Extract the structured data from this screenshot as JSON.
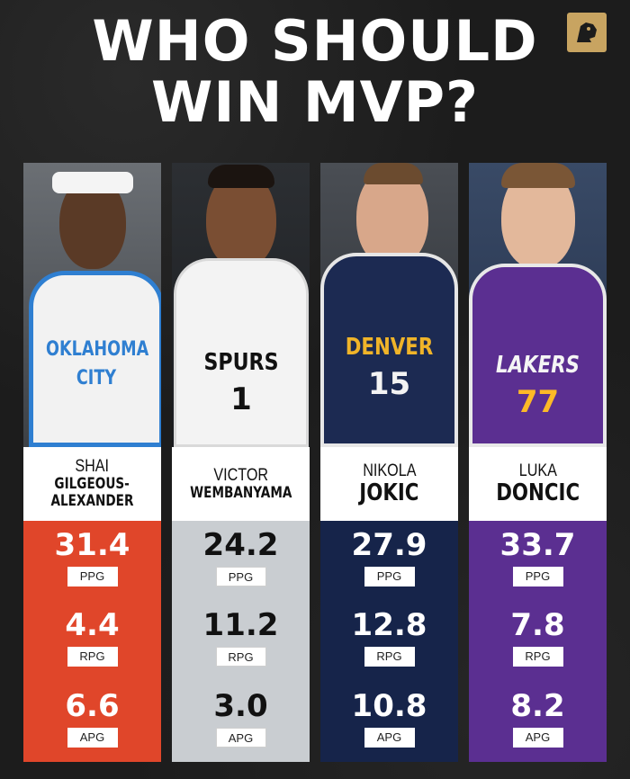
{
  "title_lines": [
    "WHO SHOULD",
    "WIN MVP?"
  ],
  "colors": {
    "background": "#1c1c1c",
    "logo_gold": "#c8a461"
  },
  "players": [
    {
      "first_name": "SHAI",
      "last_name": "GILGEOUS-ALEXANDER",
      "last_name_lines": [
        "GILGEOUS-",
        "ALEXANDER"
      ],
      "jersey_text": [
        "OKLAHOMA",
        "CITY"
      ],
      "stat_color": "#e0462a",
      "stats": [
        {
          "value": "31.4",
          "label": "PPG"
        },
        {
          "value": "4.4",
          "label": "RPG"
        },
        {
          "value": "6.6",
          "label": "APG"
        }
      ]
    },
    {
      "first_name": "VICTOR",
      "last_name": "WEMBANYAMA",
      "jersey_text": [
        "SPURS",
        "1"
      ],
      "stat_color": "#c9cdd1",
      "stats": [
        {
          "value": "24.2",
          "label": "PPG"
        },
        {
          "value": "11.2",
          "label": "RPG"
        },
        {
          "value": "3.0",
          "label": "APG"
        }
      ]
    },
    {
      "first_name": "NIKOLA",
      "last_name": "JOKIC",
      "jersey_text": [
        "DENVER",
        "15"
      ],
      "stat_color": "#16244a",
      "stats": [
        {
          "value": "27.9",
          "label": "PPG"
        },
        {
          "value": "12.8",
          "label": "RPG"
        },
        {
          "value": "10.8",
          "label": "APG"
        }
      ]
    },
    {
      "first_name": "LUKA",
      "last_name": "DONCIC",
      "jersey_text": [
        "LAKERS",
        "77"
      ],
      "stat_color": "#5b2f91",
      "stats": [
        {
          "value": "33.7",
          "label": "PPG"
        },
        {
          "value": "7.8",
          "label": "RPG"
        },
        {
          "value": "8.2",
          "label": "APG"
        }
      ]
    }
  ]
}
